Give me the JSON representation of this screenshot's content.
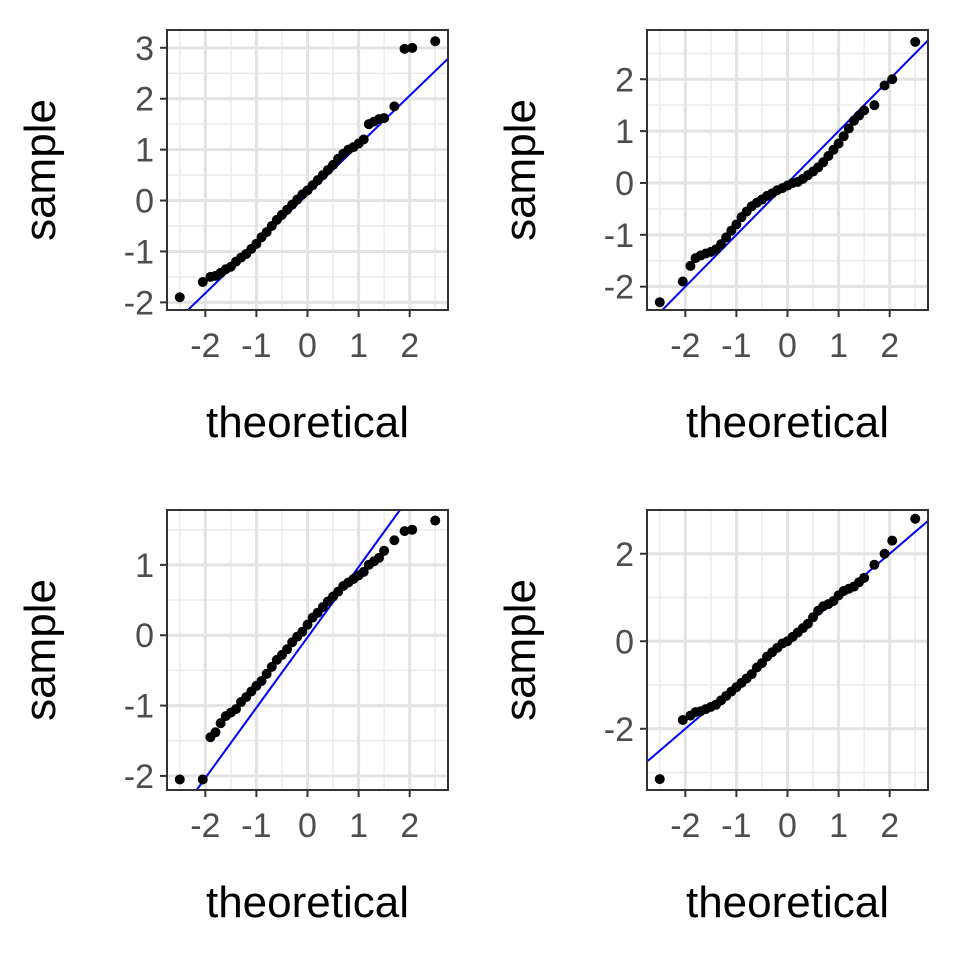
{
  "chart_data": [
    {
      "type": "scatter",
      "title": "",
      "xlabel": "theoretical",
      "ylabel": "sample",
      "xlim": [
        -2.75,
        2.75
      ],
      "ylim": [
        -2.15,
        3.35
      ],
      "xticks": [
        -2,
        -1,
        0,
        1,
        2
      ],
      "yticks": [
        -2,
        -1,
        0,
        1,
        2,
        3
      ],
      "xtick_labels": [
        "-2",
        "-1",
        "0",
        "1",
        "2"
      ],
      "ytick_labels": [
        "-2",
        "-1",
        "0",
        "1",
        "2",
        "3"
      ],
      "grid": true,
      "reference_line": {
        "intercept": 0.12,
        "slope": 0.97,
        "color": "#0000ff"
      },
      "points": {
        "x": [
          -2.5,
          -2.05,
          -1.9,
          -1.8,
          -1.7,
          -1.6,
          -1.5,
          -1.4,
          -1.3,
          -1.2,
          -1.1,
          -1.0,
          -0.9,
          -0.8,
          -0.7,
          -0.6,
          -0.5,
          -0.4,
          -0.3,
          -0.2,
          -0.1,
          0.0,
          0.1,
          0.2,
          0.3,
          0.4,
          0.5,
          0.6,
          0.7,
          0.8,
          0.9,
          1.0,
          1.1,
          1.2,
          1.3,
          1.4,
          1.5,
          1.7,
          1.9,
          2.05,
          2.5
        ],
        "y": [
          -1.9,
          -1.6,
          -1.5,
          -1.48,
          -1.42,
          -1.35,
          -1.3,
          -1.2,
          -1.12,
          -1.05,
          -0.95,
          -0.85,
          -0.72,
          -0.62,
          -0.5,
          -0.38,
          -0.28,
          -0.18,
          -0.08,
          0.02,
          0.12,
          0.2,
          0.3,
          0.4,
          0.5,
          0.6,
          0.7,
          0.82,
          0.92,
          1.0,
          1.05,
          1.12,
          1.2,
          1.5,
          1.55,
          1.6,
          1.62,
          1.85,
          2.98,
          3.0,
          3.13
        ]
      },
      "point_color": "#000000"
    },
    {
      "type": "scatter",
      "title": "",
      "xlabel": "theoretical",
      "ylabel": "sample",
      "xlim": [
        -2.75,
        2.75
      ],
      "ylim": [
        -2.45,
        2.95
      ],
      "xticks": [
        -2,
        -1,
        0,
        1,
        2
      ],
      "yticks": [
        -2,
        -1,
        0,
        1,
        2
      ],
      "xtick_labels": [
        "-2",
        "-1",
        "0",
        "1",
        "2"
      ],
      "ytick_labels": [
        "-2",
        "-1",
        "0",
        "1",
        "2"
      ],
      "grid": true,
      "reference_line": {
        "intercept": 0.0,
        "slope": 1.0,
        "color": "#0000ff"
      },
      "points": {
        "x": [
          -2.5,
          -2.05,
          -1.9,
          -1.8,
          -1.7,
          -1.6,
          -1.5,
          -1.4,
          -1.3,
          -1.2,
          -1.1,
          -1.0,
          -0.9,
          -0.8,
          -0.7,
          -0.6,
          -0.5,
          -0.4,
          -0.3,
          -0.2,
          -0.1,
          0.0,
          0.1,
          0.2,
          0.3,
          0.4,
          0.5,
          0.6,
          0.7,
          0.8,
          0.9,
          1.0,
          1.1,
          1.2,
          1.3,
          1.4,
          1.5,
          1.7,
          1.9,
          2.05,
          2.5
        ],
        "y": [
          -2.3,
          -1.9,
          -1.6,
          -1.45,
          -1.4,
          -1.36,
          -1.33,
          -1.28,
          -1.18,
          -1.05,
          -0.92,
          -0.8,
          -0.66,
          -0.55,
          -0.45,
          -0.38,
          -0.32,
          -0.25,
          -0.2,
          -0.14,
          -0.1,
          -0.05,
          0.0,
          0.02,
          0.08,
          0.15,
          0.22,
          0.3,
          0.4,
          0.52,
          0.64,
          0.76,
          0.9,
          1.05,
          1.2,
          1.3,
          1.4,
          1.5,
          1.88,
          2.0,
          2.72
        ]
      },
      "point_color": "#000000"
    },
    {
      "type": "scatter",
      "title": "",
      "xlabel": "theoretical",
      "ylabel": "sample",
      "xlim": [
        -2.75,
        2.75
      ],
      "ylim": [
        -2.2,
        1.78
      ],
      "xticks": [
        -2,
        -1,
        0,
        1,
        2
      ],
      "yticks": [
        -2,
        -1,
        0,
        1
      ],
      "xtick_labels": [
        "-2",
        "-1",
        "0",
        "1",
        "2"
      ],
      "ytick_labels": [
        "-2",
        "-1",
        "0",
        "1"
      ],
      "grid": true,
      "reference_line": {
        "intercept": -0.03,
        "slope": 1.0,
        "color": "#0000ff"
      },
      "points": {
        "x": [
          -2.5,
          -2.05,
          -1.9,
          -1.8,
          -1.7,
          -1.6,
          -1.5,
          -1.4,
          -1.3,
          -1.2,
          -1.1,
          -1.0,
          -0.9,
          -0.8,
          -0.7,
          -0.6,
          -0.5,
          -0.4,
          -0.3,
          -0.2,
          -0.1,
          0.0,
          0.1,
          0.2,
          0.3,
          0.4,
          0.5,
          0.6,
          0.7,
          0.8,
          0.9,
          1.0,
          1.1,
          1.2,
          1.3,
          1.4,
          1.5,
          1.7,
          1.9,
          2.05,
          2.5
        ],
        "y": [
          -2.05,
          -2.05,
          -1.45,
          -1.38,
          -1.25,
          -1.15,
          -1.1,
          -1.05,
          -0.95,
          -0.88,
          -0.8,
          -0.72,
          -0.65,
          -0.55,
          -0.45,
          -0.35,
          -0.28,
          -0.2,
          -0.1,
          -0.02,
          0.05,
          0.15,
          0.25,
          0.32,
          0.4,
          0.48,
          0.55,
          0.62,
          0.7,
          0.75,
          0.8,
          0.85,
          0.9,
          1.0,
          1.05,
          1.1,
          1.2,
          1.35,
          1.48,
          1.5,
          1.63
        ]
      },
      "point_color": "#000000"
    },
    {
      "type": "scatter",
      "title": "",
      "xlabel": "theoretical",
      "ylabel": "sample",
      "xlim": [
        -2.75,
        2.75
      ],
      "ylim": [
        -3.4,
        3.0
      ],
      "xticks": [
        -2,
        -1,
        0,
        1,
        2
      ],
      "yticks": [
        -2,
        0,
        2
      ],
      "xtick_labels": [
        "-2",
        "-1",
        "0",
        "1",
        "2"
      ],
      "ytick_labels": [
        "-2",
        "0",
        "2"
      ],
      "grid": true,
      "reference_line": {
        "intercept": 0.0,
        "slope": 1.0,
        "color": "#0000ff"
      },
      "points": {
        "x": [
          -2.5,
          -2.05,
          -1.9,
          -1.8,
          -1.7,
          -1.6,
          -1.5,
          -1.4,
          -1.3,
          -1.2,
          -1.1,
          -1.0,
          -0.9,
          -0.8,
          -0.7,
          -0.6,
          -0.5,
          -0.4,
          -0.3,
          -0.2,
          -0.1,
          0.0,
          0.1,
          0.2,
          0.3,
          0.4,
          0.5,
          0.6,
          0.7,
          0.8,
          0.9,
          1.0,
          1.1,
          1.2,
          1.3,
          1.4,
          1.5,
          1.7,
          1.9,
          2.05,
          2.5
        ],
        "y": [
          -3.15,
          -1.8,
          -1.7,
          -1.62,
          -1.6,
          -1.55,
          -1.5,
          -1.45,
          -1.35,
          -1.25,
          -1.15,
          -1.05,
          -0.95,
          -0.85,
          -0.75,
          -0.6,
          -0.5,
          -0.35,
          -0.25,
          -0.15,
          -0.05,
          0.0,
          0.1,
          0.2,
          0.3,
          0.4,
          0.55,
          0.7,
          0.8,
          0.85,
          0.92,
          1.05,
          1.15,
          1.2,
          1.25,
          1.35,
          1.45,
          1.75,
          2.0,
          2.3,
          2.8
        ]
      },
      "point_color": "#000000"
    }
  ]
}
